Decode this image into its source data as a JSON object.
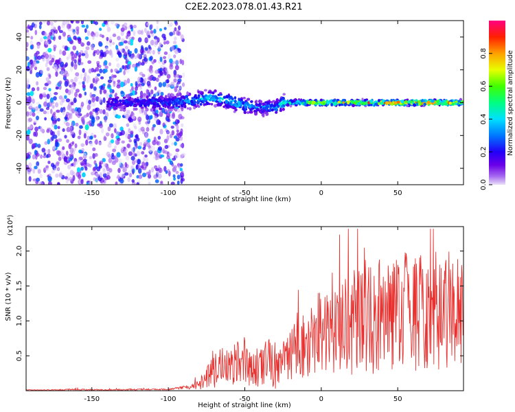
{
  "chart_data": [
    {
      "type": "heatmap",
      "title": "C2E2.2023.078.01.43.R21",
      "xlabel": "Height of straight line (km)",
      "ylabel": "Frequency (Hz)",
      "xlim": [
        -193,
        93
      ],
      "ylim": [
        -50,
        50
      ],
      "xticks": [
        -150,
        -100,
        -50,
        0,
        50
      ],
      "xtick_labels": [
        "-150",
        "-100",
        "-50",
        "0",
        "50"
      ],
      "yticks": [
        -40,
        -20,
        0,
        20,
        40
      ],
      "ytick_labels": [
        "-40",
        "-20",
        "0",
        "20",
        "40"
      ],
      "colorbar": {
        "label": "Normalized spectral amplitude",
        "range": [
          0,
          1
        ],
        "ticks": [
          0,
          0.2,
          0.4,
          0.6,
          0.8
        ],
        "tick_labels": [
          "0.0",
          "0.2",
          "0.4",
          "0.6",
          "0.8"
        ]
      },
      "signal_trace": {
        "x": [
          -140,
          -130,
          -120,
          -110,
          -100,
          -90,
          -80,
          -70,
          -60,
          -50,
          -40,
          -30,
          -24,
          -15,
          0,
          15,
          30,
          50,
          70,
          93
        ],
        "frequency": [
          0,
          0,
          0,
          0,
          0,
          1,
          2,
          3,
          1,
          -2,
          -3,
          -3,
          0,
          0,
          0,
          0,
          0,
          0,
          0,
          0
        ],
        "amplitude": [
          0.25,
          0.25,
          0.25,
          0.3,
          0.3,
          0.4,
          0.45,
          0.5,
          0.45,
          0.4,
          0.35,
          0.35,
          0.55,
          0.6,
          0.75,
          0.8,
          0.85,
          0.9,
          0.95,
          0.85
        ]
      },
      "noise_region": {
        "x_from": -193,
        "x_to": -90,
        "amplitude": 0.2
      }
    },
    {
      "type": "line",
      "xlabel": "Height of straight line (km)",
      "ylabel": "SNR (10 * v/v)",
      "y_scale_label": "(x10⁴)",
      "xlim": [
        -193,
        93
      ],
      "ylim": [
        0,
        2.35
      ],
      "xticks": [
        -150,
        -100,
        -50,
        0,
        50
      ],
      "xtick_labels": [
        "-150",
        "-100",
        "-50",
        "0",
        "50"
      ],
      "yticks": [
        0.5,
        1.0,
        1.5,
        2.0
      ],
      "ytick_labels": [
        "0.5",
        "1.0",
        "1.5",
        "2.0"
      ],
      "color": "#e8302e",
      "series": [
        {
          "x": [
            -193,
            -180,
            -160,
            -140,
            -120,
            -100,
            -90,
            -85,
            -80,
            -75,
            -70,
            -65,
            -60,
            -55,
            -50,
            -45,
            -40,
            -35,
            -30,
            -25,
            -20,
            -15,
            -10,
            -5,
            0,
            5,
            10,
            15,
            20,
            25,
            30,
            35,
            40,
            45,
            50,
            55,
            60,
            65,
            70,
            75,
            80,
            85,
            90,
            93
          ],
          "values": [
            0.01,
            0.01,
            0.02,
            0.01,
            0.02,
            0.02,
            0.05,
            0.06,
            0.1,
            0.2,
            0.3,
            0.4,
            0.35,
            0.45,
            0.35,
            0.4,
            0.35,
            0.5,
            0.4,
            0.45,
            0.55,
            0.7,
            0.65,
            0.8,
            0.95,
            0.85,
            0.9,
            1.0,
            1.1,
            1.0,
            1.2,
            1.1,
            1.25,
            1.15,
            1.2,
            1.3,
            1.15,
            1.25,
            1.2,
            1.1,
            1.15,
            1.3,
            1.2,
            1.25
          ],
          "noise_amplitude": [
            0.005,
            0.005,
            0.01,
            0.01,
            0.01,
            0.01,
            0.02,
            0.04,
            0.08,
            0.15,
            0.25,
            0.35,
            0.3,
            0.3,
            0.25,
            0.3,
            0.3,
            0.35,
            0.35,
            0.35,
            0.4,
            0.5,
            0.45,
            0.55,
            0.6,
            0.55,
            0.6,
            0.7,
            0.8,
            0.8,
            0.85,
            0.8,
            0.85,
            0.8,
            0.8,
            0.85,
            0.8,
            0.85,
            0.8,
            0.75,
            0.8,
            0.85,
            0.8,
            0.8
          ]
        }
      ]
    }
  ]
}
